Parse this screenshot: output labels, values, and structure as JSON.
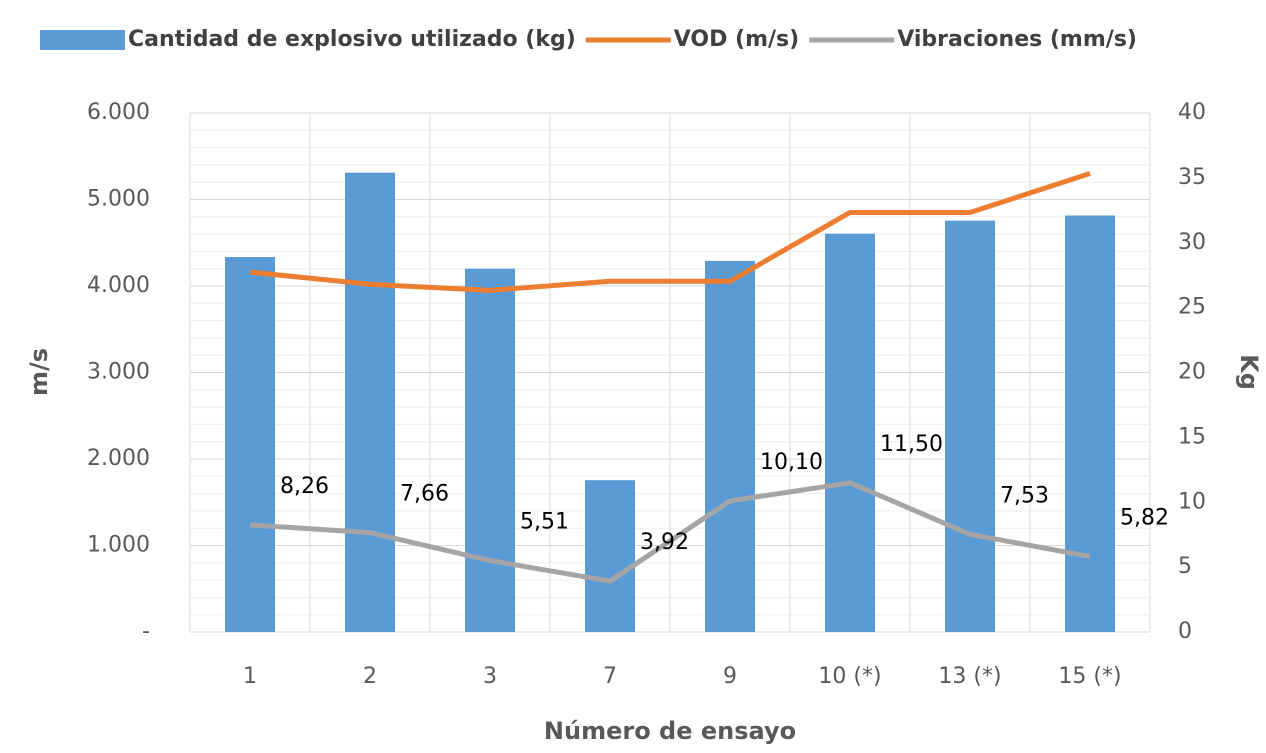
{
  "chart_data": {
    "type": "bar-line",
    "categories": [
      "1",
      "2",
      "3",
      "7",
      "9",
      "10 (*)",
      "13 (*)",
      "15 (*)"
    ],
    "series": [
      {
        "name": "Cantidad de explosivo utilizado (kg)",
        "type": "bar",
        "color": "#5b9bd5",
        "axis": "y2",
        "values": [
          28.9,
          35.4,
          28.0,
          11.7,
          28.6,
          30.7,
          31.7,
          32.1
        ]
      },
      {
        "name": "VOD (m/s)",
        "type": "line",
        "color": "#ed7d31",
        "values": [
          4160,
          4020,
          3950,
          4055,
          4055,
          4850,
          4850,
          5300
        ]
      },
      {
        "name": "Vibraciones (mm/s)",
        "type": "line",
        "color": "#a5a5a5",
        "axis": "y2",
        "values": [
          8.26,
          7.66,
          5.51,
          3.92,
          10.1,
          11.5,
          7.53,
          5.82
        ],
        "value_labels": [
          "8,26",
          "7,66",
          "5,51",
          "3,92",
          "10,10",
          "11,50",
          "7,53",
          "5,82"
        ]
      }
    ],
    "ylabel": "m/s",
    "y2label": "Kg",
    "xlabel": "Número de ensayo",
    "ylim": [
      0,
      6000
    ],
    "yticks": [
      {
        "value": 0,
        "label": "-"
      },
      {
        "value": 1000,
        "label": "1.000"
      },
      {
        "value": 2000,
        "label": "2.000"
      },
      {
        "value": 3000,
        "label": "3.000"
      },
      {
        "value": 4000,
        "label": "4.000"
      },
      {
        "value": 5000,
        "label": "5.000"
      },
      {
        "value": 6000,
        "label": "6.000"
      }
    ],
    "y2lim": [
      0,
      40
    ],
    "y2ticks": [
      0,
      5,
      10,
      15,
      20,
      25,
      30,
      35,
      40
    ],
    "grid": true,
    "legend": "top"
  }
}
